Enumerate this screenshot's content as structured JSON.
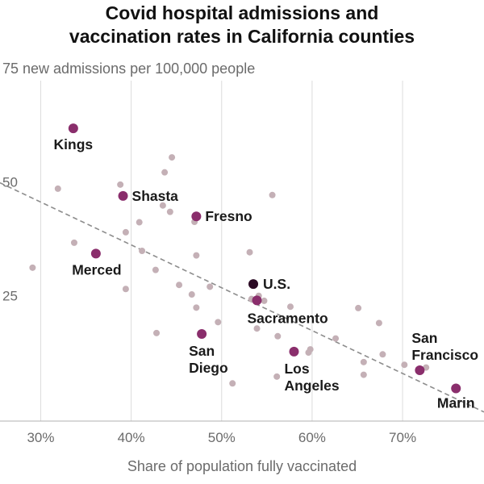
{
  "chart_data": {
    "type": "scatter",
    "title_lines": [
      "Covid hospital admissions and",
      "vaccination rates in California counties"
    ],
    "ylabel": "new admissions per 100,000 people",
    "xlabel": "Share of population fully vaccinated",
    "xlim": [
      25.5,
      79
    ],
    "ylim": [
      0,
      75
    ],
    "x_ticks": [
      {
        "v": 30,
        "label": "30%"
      },
      {
        "v": 40,
        "label": "40%"
      },
      {
        "v": 50,
        "label": "50%"
      },
      {
        "v": 60,
        "label": "60%"
      },
      {
        "v": 70,
        "label": "70%"
      }
    ],
    "y_ticks": [
      {
        "v": 75,
        "label": "75"
      },
      {
        "v": 50,
        "label": "50"
      },
      {
        "v": 25,
        "label": "25"
      }
    ],
    "top_tick_suffix": " new admissions per 100,000 people",
    "grid": "vertical",
    "colors": {
      "other": "#c4b0b6",
      "highlight": "#8a2e6c",
      "us": "#2b0a24",
      "trend": "#8c8c8c",
      "grid": "#dcdcdc",
      "axis": "#b0b0b0"
    },
    "trend": {
      "x1": 25.5,
      "y1": 52.5,
      "x2": 79,
      "y2": 2.0
    },
    "other_counties": [
      [
        29.1,
        33.8
      ],
      [
        31.9,
        51.2
      ],
      [
        33.7,
        39.3
      ],
      [
        38.8,
        52.1
      ],
      [
        39.4,
        41.6
      ],
      [
        39.4,
        29.1
      ],
      [
        40.9,
        43.8
      ],
      [
        41.2,
        37.5
      ],
      [
        42.7,
        33.3
      ],
      [
        42.8,
        19.4
      ],
      [
        43.5,
        47.5
      ],
      [
        43.7,
        54.8
      ],
      [
        44.3,
        46.1
      ],
      [
        44.5,
        58.1
      ],
      [
        45.3,
        30.0
      ],
      [
        46.7,
        27.9
      ],
      [
        47.0,
        43.9
      ],
      [
        47.2,
        36.5
      ],
      [
        47.2,
        25.0
      ],
      [
        48.7,
        29.6
      ],
      [
        49.6,
        21.8
      ],
      [
        51.2,
        8.3
      ],
      [
        53.1,
        37.2
      ],
      [
        53.3,
        26.9
      ],
      [
        53.9,
        20.4
      ],
      [
        54.1,
        27.6
      ],
      [
        54.7,
        26.5
      ],
      [
        55.6,
        49.8
      ],
      [
        56.2,
        18.7
      ],
      [
        56.1,
        9.8
      ],
      [
        57.6,
        25.2
      ],
      [
        59.6,
        15.1
      ],
      [
        59.8,
        15.8
      ],
      [
        62.6,
        18.2
      ],
      [
        65.1,
        24.9
      ],
      [
        65.7,
        13.0
      ],
      [
        65.7,
        10.2
      ],
      [
        67.4,
        21.6
      ],
      [
        67.8,
        14.7
      ],
      [
        70.2,
        12.4
      ],
      [
        72.6,
        11.8
      ]
    ],
    "highlighted": [
      {
        "name": "Kings",
        "lines": [
          "Kings"
        ],
        "x": 33.6,
        "y": 64.5
      },
      {
        "name": "Shasta",
        "lines": [
          "Shasta"
        ],
        "x": 39.1,
        "y": 49.6
      },
      {
        "name": "Fresno",
        "lines": [
          "Fresno"
        ],
        "x": 47.2,
        "y": 45.1
      },
      {
        "name": "Merced",
        "lines": [
          "Merced"
        ],
        "x": 36.1,
        "y": 36.9
      },
      {
        "name": "U.S.",
        "lines": [
          "U.S."
        ],
        "x": 53.5,
        "y": 30.2,
        "is_us": true
      },
      {
        "name": "Sacramento",
        "lines": [
          "Sacramento"
        ],
        "x": 53.9,
        "y": 26.6
      },
      {
        "name": "San Diego",
        "lines": [
          "San",
          "Diego"
        ],
        "x": 47.8,
        "y": 19.2
      },
      {
        "name": "Los Angeles",
        "lines": [
          "Los",
          "Angeles"
        ],
        "x": 58.0,
        "y": 15.3
      },
      {
        "name": "San Francisco",
        "lines": [
          "San",
          "Francisco"
        ],
        "x": 71.9,
        "y": 11.2
      },
      {
        "name": "Marin",
        "lines": [
          "Marin"
        ],
        "x": 75.9,
        "y": 7.2
      }
    ]
  }
}
